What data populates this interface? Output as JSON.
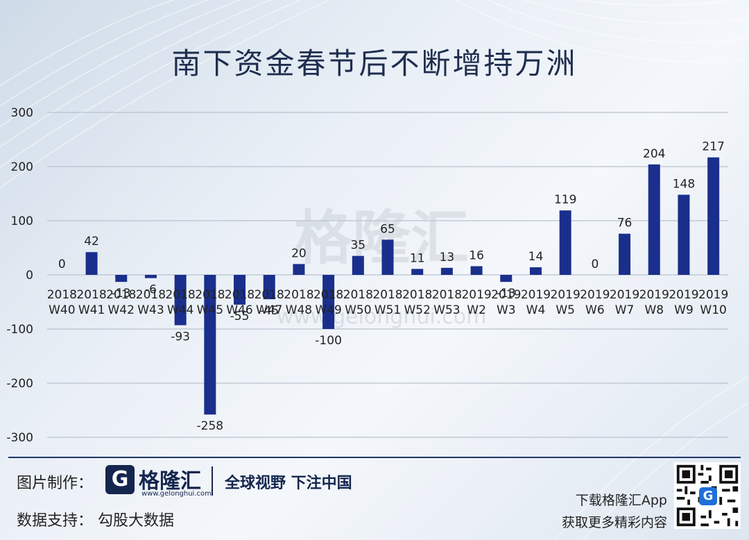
{
  "title": "南下资金春节后不断增持万洲",
  "watermark": {
    "main": "格隆汇",
    "url": "www.gelonghui.com"
  },
  "footer": {
    "credit_made_label": "图片制作：",
    "logo_letter": "G",
    "logo_name": "格隆汇",
    "logo_url": "www.gelonghui.com",
    "slogan": "全球视野 下注中国",
    "credit_data": "数据支持：  勾股大数据",
    "app_line1": "下载格隆汇App",
    "app_line2": "获取更多精彩内容",
    "qr_badge": "G"
  },
  "colors": {
    "bar": "#1a2f8c",
    "grid": "#b8c2ce",
    "title": "#1e2e4e"
  },
  "chart_data": {
    "type": "bar",
    "title": "南下资金春节后不断增持万洲",
    "categories": [
      [
        "2018",
        "W40"
      ],
      [
        "2018",
        "W41"
      ],
      [
        "2018",
        "W42"
      ],
      [
        "2018",
        "W43"
      ],
      [
        "2018",
        "W44"
      ],
      [
        "2018",
        "W45"
      ],
      [
        "2018",
        "W46"
      ],
      [
        "2018",
        "W47"
      ],
      [
        "2018",
        "W48"
      ],
      [
        "2018",
        "W49"
      ],
      [
        "2018",
        "W50"
      ],
      [
        "2018",
        "W51"
      ],
      [
        "2018",
        "W52"
      ],
      [
        "2018",
        "W53"
      ],
      [
        "2019",
        "W2"
      ],
      [
        "2019",
        "W3"
      ],
      [
        "2019",
        "W4"
      ],
      [
        "2019",
        "W5"
      ],
      [
        "2019",
        "W6"
      ],
      [
        "2019",
        "W7"
      ],
      [
        "2019",
        "W8"
      ],
      [
        "2019",
        "W9"
      ],
      [
        "2019",
        "W10"
      ]
    ],
    "values": [
      0,
      42,
      -13,
      -6,
      -93,
      -258,
      -55,
      -45,
      20,
      -100,
      35,
      65,
      11,
      13,
      16,
      -13,
      14,
      119,
      0,
      76,
      204,
      148,
      217
    ],
    "labels": [
      "0",
      "42",
      "-13",
      "-6",
      "-93",
      "-258",
      "-55",
      "-45",
      "20",
      "-100",
      "35",
      "65",
      "11",
      "13",
      "16",
      "-13",
      "14",
      "119",
      "0",
      "76",
      "204",
      "148",
      "217"
    ],
    "yticks": [
      300,
      200,
      100,
      0,
      -100,
      -200,
      -300
    ],
    "ylim": [
      -300,
      300
    ],
    "grid": true,
    "xlabel": "",
    "ylabel": ""
  }
}
